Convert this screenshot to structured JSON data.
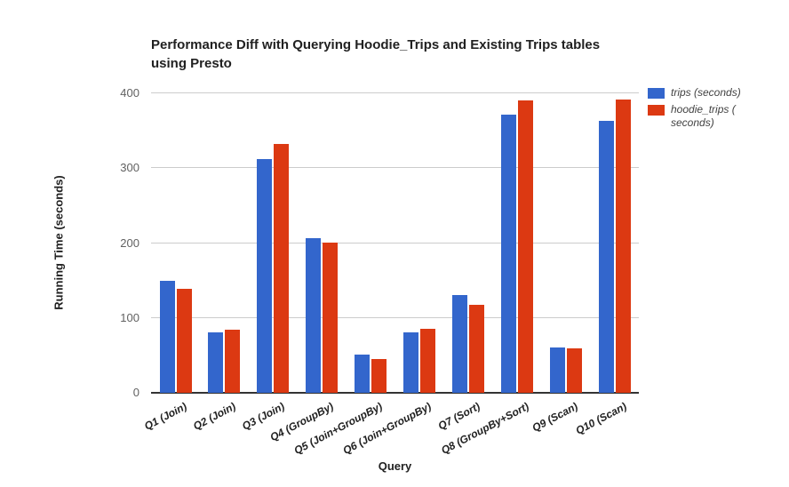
{
  "chart_data": {
    "type": "bar",
    "title": "Performance Diff with Querying Hoodie_Trips and Existing Trips tables using Presto",
    "title_lines": [
      "Performance Diff with Querying Hoodie_Trips and Existing Trips tables",
      "using Presto"
    ],
    "xlabel": "Query",
    "ylabel": "Running Time (seconds)",
    "ylim": [
      0,
      400
    ],
    "yticks": [
      0,
      100,
      200,
      300,
      400
    ],
    "grid": true,
    "legend_position": "right",
    "grid_color": "#cccccc",
    "baseline_color": "#333333",
    "categories": [
      "Q1 (Join)",
      "Q2 (Join)",
      "Q3 (Join)",
      "Q4 (GroupBy)",
      "Q5 (Join+GroupBy)",
      "Q6 (Join+GroupBy)",
      "Q7 (Sort)",
      "Q8 (GroupBy+Sort)",
      "Q9 (Scan)",
      "Q10 (Scan)"
    ],
    "series": [
      {
        "name": "trips (seconds)",
        "color": "#3366cc",
        "values": [
          150,
          81,
          312,
          207,
          51,
          81,
          130,
          371,
          61,
          363
        ]
      },
      {
        "name": "hoodie_trips (seconds)",
        "color": "#dc3912",
        "values": [
          139,
          84,
          332,
          201,
          45,
          85,
          117,
          390,
          59,
          392
        ]
      }
    ],
    "legend": [
      {
        "color": "#3366cc",
        "lines": [
          "trips (seconds)"
        ]
      },
      {
        "color": "#dc3912",
        "lines": [
          "hoodie_trips (",
          "seconds)"
        ]
      }
    ]
  }
}
